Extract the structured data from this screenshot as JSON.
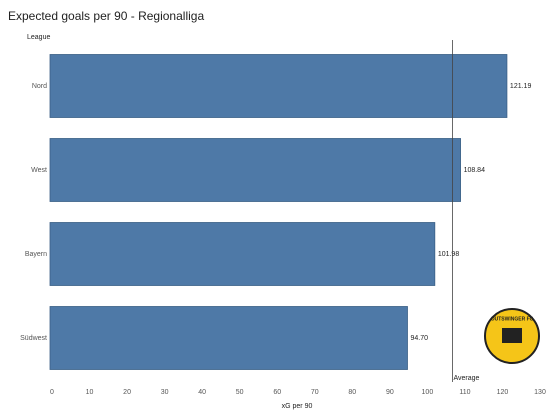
{
  "chart_data": {
    "type": "hbar",
    "title": "Expected goals per 90 - Regionalliga",
    "y_label": "League",
    "x_label": "xG per 90",
    "categories": [
      "Nord",
      "West",
      "Bayern",
      "Südwest"
    ],
    "values": [
      121.19,
      108.84,
      101.98,
      94.7
    ],
    "value_labels": [
      "121.19",
      "108.84",
      "101.98",
      "94.70"
    ],
    "color": "#4e79a7",
    "xlim": [
      0,
      130
    ],
    "xticks": [
      0,
      10,
      20,
      30,
      40,
      50,
      60,
      70,
      80,
      90,
      100,
      110,
      120,
      130
    ],
    "reference_line": {
      "value": 106.68,
      "label": "Average"
    },
    "logo": {
      "text": "OUTSWINGER FC"
    }
  }
}
